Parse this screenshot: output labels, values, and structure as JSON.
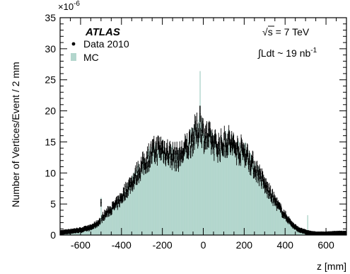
{
  "chart_data": {
    "type": "bar",
    "title": "",
    "xlabel": "z [mm]",
    "ylabel": "Number of Vertices/Event / 2 mm",
    "y_multiplier": "×10",
    "y_multiplier_exponent": "-6",
    "xlim": [
      -700,
      700
    ],
    "ylim": [
      0,
      35
    ],
    "xticks": [
      -600,
      -400,
      -200,
      0,
      200,
      400,
      600
    ],
    "xtick_labels": [
      "-600",
      "-400",
      "-200",
      "0",
      "200",
      "400",
      "600"
    ],
    "yticks": [
      0,
      5,
      10,
      15,
      20,
      25,
      30,
      35
    ],
    "ytick_labels": [
      "0",
      "5",
      "10",
      "15",
      "20",
      "25",
      "30",
      "35"
    ],
    "bin_width_mm": 2,
    "x": [
      -700,
      -650,
      -600,
      -550,
      -520,
      -500,
      -490,
      -470,
      -450,
      -420,
      -400,
      -380,
      -360,
      -340,
      -320,
      -300,
      -280,
      -260,
      -240,
      -220,
      -200,
      -180,
      -160,
      -140,
      -120,
      -100,
      -80,
      -60,
      -40,
      -20,
      -10,
      0,
      20,
      40,
      60,
      80,
      100,
      120,
      140,
      160,
      180,
      200,
      220,
      240,
      260,
      280,
      300,
      320,
      340,
      360,
      380,
      400,
      420,
      440,
      460,
      480,
      500,
      510,
      530,
      550,
      600,
      650,
      700
    ],
    "series": [
      {
        "name": "MC",
        "color": "#b3d6cd",
        "values": [
          0.4,
          0.6,
          0.8,
          1.2,
          2.0,
          2.6,
          3.2,
          3.7,
          4.3,
          5.2,
          6.2,
          7.3,
          8.3,
          9.2,
          10.3,
          11.3,
          12.3,
          13.0,
          13.6,
          14.0,
          14.1,
          13.6,
          13.1,
          12.8,
          12.7,
          13.6,
          14.5,
          15.6,
          17.0,
          17.4,
          18.0,
          16.6,
          16.0,
          15.3,
          14.6,
          14.6,
          15.1,
          15.5,
          14.9,
          14.1,
          13.9,
          14.0,
          12.7,
          11.6,
          10.6,
          9.6,
          8.2,
          7.1,
          6.2,
          5.2,
          4.1,
          3.2,
          2.4,
          1.6,
          1.1,
          0.8,
          0.5,
          0.4,
          0.3,
          0.2,
          0.2,
          0.3,
          0.3
        ]
      },
      {
        "name": "Data 2010",
        "color": "#000000",
        "values": [
          0.4,
          0.6,
          0.8,
          1.2,
          1.8,
          2.4,
          3.0,
          3.6,
          4.2,
          5.1,
          6.0,
          7.1,
          8.0,
          8.9,
          10.1,
          11.0,
          12.0,
          12.8,
          13.4,
          13.8,
          13.9,
          13.4,
          12.9,
          12.6,
          12.5,
          13.3,
          14.1,
          15.1,
          16.3,
          16.8,
          17.5,
          16.1,
          15.7,
          15.1,
          14.4,
          14.2,
          14.8,
          15.2,
          14.5,
          13.8,
          13.6,
          13.5,
          12.4,
          11.4,
          10.4,
          9.4,
          8.1,
          7.0,
          6.0,
          5.0,
          4.0,
          3.1,
          2.3,
          1.5,
          1.0,
          0.7,
          0.5,
          0.4,
          0.3,
          0.2,
          0.2,
          0.3,
          0.3
        ]
      }
    ],
    "legend": {
      "placement": "top-left",
      "experiment": "ATLAS",
      "entries": [
        {
          "label": "Data 2010",
          "marker": "•"
        },
        {
          "label": "MC",
          "marker": "■"
        }
      ]
    },
    "annotations": {
      "sqrt_s": "s = 7 TeV",
      "sqrt_symbol": "√",
      "lumi": "Ldt ~ 19 nb",
      "lumi_integral": "∫",
      "lumi_exponent": "-1"
    },
    "grid": false
  }
}
